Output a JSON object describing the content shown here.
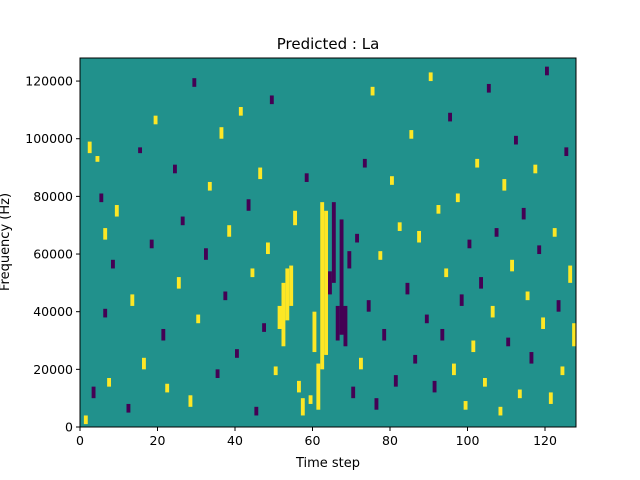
{
  "chart_data": {
    "type": "heatmap",
    "title": "Predicted : La",
    "xlabel": "Time step",
    "ylabel": "Frequency (Hz)",
    "xlim": [
      0,
      128
    ],
    "ylim": [
      0,
      128000
    ],
    "xticks": [
      0,
      20,
      40,
      60,
      80,
      100,
      120
    ],
    "yticks": [
      0,
      20000,
      40000,
      60000,
      80000,
      100000,
      120000
    ],
    "xtick_labels": [
      "0",
      "20",
      "40",
      "60",
      "80",
      "100",
      "120"
    ],
    "ytick_labels": [
      "0",
      "20000",
      "40000",
      "60000",
      "80000",
      "100000",
      "120000"
    ],
    "grid_cols": 128,
    "grid_rows": 128,
    "value_range": [
      -1,
      1
    ],
    "colors": {
      "background": "#21918c",
      "high": "#fde725",
      "low": "#440154"
    },
    "segments": [
      {
        "t": 1,
        "y": 1000,
        "len": 3000,
        "v": 1
      },
      {
        "t": 2,
        "y": 95000,
        "len": 4000,
        "v": 1
      },
      {
        "t": 3,
        "y": 10000,
        "len": 4000,
        "v": -1
      },
      {
        "t": 4,
        "y": 92000,
        "len": 2000,
        "v": 1
      },
      {
        "t": 5,
        "y": 78000,
        "len": 3000,
        "v": -1
      },
      {
        "t": 6,
        "y": 65000,
        "len": 4000,
        "v": 1
      },
      {
        "t": 6,
        "y": 38000,
        "len": 3000,
        "v": -1
      },
      {
        "t": 7,
        "y": 14000,
        "len": 3000,
        "v": 1
      },
      {
        "t": 8,
        "y": 55000,
        "len": 3000,
        "v": -1
      },
      {
        "t": 9,
        "y": 73000,
        "len": 4000,
        "v": 1
      },
      {
        "t": 12,
        "y": 5000,
        "len": 3000,
        "v": -1
      },
      {
        "t": 13,
        "y": 42000,
        "len": 4000,
        "v": 1
      },
      {
        "t": 15,
        "y": 95000,
        "len": 2000,
        "v": -1
      },
      {
        "t": 16,
        "y": 20000,
        "len": 4000,
        "v": 1
      },
      {
        "t": 18,
        "y": 62000,
        "len": 3000,
        "v": -1
      },
      {
        "t": 19,
        "y": 105000,
        "len": 3000,
        "v": 1
      },
      {
        "t": 21,
        "y": 30000,
        "len": 4000,
        "v": -1
      },
      {
        "t": 22,
        "y": 12000,
        "len": 3000,
        "v": 1
      },
      {
        "t": 24,
        "y": 88000,
        "len": 3000,
        "v": -1
      },
      {
        "t": 25,
        "y": 48000,
        "len": 4000,
        "v": 1
      },
      {
        "t": 26,
        "y": 70000,
        "len": 3000,
        "v": -1
      },
      {
        "t": 28,
        "y": 7000,
        "len": 4000,
        "v": 1
      },
      {
        "t": 29,
        "y": 118000,
        "len": 3000,
        "v": -1
      },
      {
        "t": 30,
        "y": 36000,
        "len": 3000,
        "v": 1
      },
      {
        "t": 32,
        "y": 58000,
        "len": 4000,
        "v": -1
      },
      {
        "t": 33,
        "y": 82000,
        "len": 3000,
        "v": 1
      },
      {
        "t": 35,
        "y": 17000,
        "len": 3000,
        "v": -1
      },
      {
        "t": 36,
        "y": 100000,
        "len": 4000,
        "v": 1
      },
      {
        "t": 37,
        "y": 44000,
        "len": 3000,
        "v": -1
      },
      {
        "t": 38,
        "y": 66000,
        "len": 4000,
        "v": 1
      },
      {
        "t": 40,
        "y": 24000,
        "len": 3000,
        "v": -1
      },
      {
        "t": 41,
        "y": 108000,
        "len": 3000,
        "v": 1
      },
      {
        "t": 43,
        "y": 75000,
        "len": 4000,
        "v": -1
      },
      {
        "t": 44,
        "y": 52000,
        "len": 3000,
        "v": 1
      },
      {
        "t": 45,
        "y": 4000,
        "len": 3000,
        "v": -1
      },
      {
        "t": 46,
        "y": 86000,
        "len": 4000,
        "v": 1
      },
      {
        "t": 47,
        "y": 33000,
        "len": 3000,
        "v": -1
      },
      {
        "t": 48,
        "y": 60000,
        "len": 4000,
        "v": 1
      },
      {
        "t": 49,
        "y": 112000,
        "len": 3000,
        "v": -1
      },
      {
        "t": 50,
        "y": 18000,
        "len": 3000,
        "v": 1
      },
      {
        "t": 51,
        "y": 34000,
        "len": 8000,
        "v": 1
      },
      {
        "t": 52,
        "y": 28000,
        "len": 22000,
        "v": 1
      },
      {
        "t": 53,
        "y": 37000,
        "len": 18000,
        "v": 1
      },
      {
        "t": 54,
        "y": 42000,
        "len": 14000,
        "v": 1
      },
      {
        "t": 55,
        "y": 70000,
        "len": 5000,
        "v": 1
      },
      {
        "t": 56,
        "y": 12000,
        "len": 4000,
        "v": 1
      },
      {
        "t": 57,
        "y": 4000,
        "len": 6000,
        "v": 1
      },
      {
        "t": 58,
        "y": 85000,
        "len": 3000,
        "v": -1
      },
      {
        "t": 59,
        "y": 8000,
        "len": 3000,
        "v": 1
      },
      {
        "t": 60,
        "y": 26000,
        "len": 14000,
        "v": 1
      },
      {
        "t": 61,
        "y": 6000,
        "len": 16000,
        "v": 1
      },
      {
        "t": 62,
        "y": 20000,
        "len": 58000,
        "v": 1
      },
      {
        "t": 63,
        "y": 25000,
        "len": 50000,
        "v": 1
      },
      {
        "t": 64,
        "y": 46000,
        "len": 8000,
        "v": -1
      },
      {
        "t": 65,
        "y": 50000,
        "len": 28000,
        "v": -1
      },
      {
        "t": 66,
        "y": 30000,
        "len": 12000,
        "v": -1
      },
      {
        "t": 67,
        "y": 32000,
        "len": 40000,
        "v": -1
      },
      {
        "t": 68,
        "y": 28000,
        "len": 14000,
        "v": -1
      },
      {
        "t": 69,
        "y": 55000,
        "len": 6000,
        "v": -1
      },
      {
        "t": 70,
        "y": 10000,
        "len": 4000,
        "v": -1
      },
      {
        "t": 71,
        "y": 64000,
        "len": 3000,
        "v": -1
      },
      {
        "t": 72,
        "y": 20000,
        "len": 4000,
        "v": 1
      },
      {
        "t": 73,
        "y": 90000,
        "len": 3000,
        "v": -1
      },
      {
        "t": 74,
        "y": 40000,
        "len": 4000,
        "v": -1
      },
      {
        "t": 75,
        "y": 115000,
        "len": 3000,
        "v": 1
      },
      {
        "t": 76,
        "y": 6000,
        "len": 4000,
        "v": -1
      },
      {
        "t": 77,
        "y": 58000,
        "len": 3000,
        "v": 1
      },
      {
        "t": 78,
        "y": 30000,
        "len": 4000,
        "v": -1
      },
      {
        "t": 80,
        "y": 84000,
        "len": 3000,
        "v": 1
      },
      {
        "t": 81,
        "y": 14000,
        "len": 4000,
        "v": -1
      },
      {
        "t": 82,
        "y": 68000,
        "len": 3000,
        "v": 1
      },
      {
        "t": 84,
        "y": 46000,
        "len": 4000,
        "v": -1
      },
      {
        "t": 85,
        "y": 100000,
        "len": 3000,
        "v": 1
      },
      {
        "t": 86,
        "y": 22000,
        "len": 3000,
        "v": -1
      },
      {
        "t": 87,
        "y": 64000,
        "len": 4000,
        "v": 1
      },
      {
        "t": 89,
        "y": 36000,
        "len": 3000,
        "v": -1
      },
      {
        "t": 90,
        "y": 120000,
        "len": 3000,
        "v": 1
      },
      {
        "t": 91,
        "y": 12000,
        "len": 4000,
        "v": -1
      },
      {
        "t": 92,
        "y": 74000,
        "len": 3000,
        "v": 1
      },
      {
        "t": 93,
        "y": 30000,
        "len": 4000,
        "v": -1
      },
      {
        "t": 94,
        "y": 52000,
        "len": 3000,
        "v": 1
      },
      {
        "t": 95,
        "y": 106000,
        "len": 3000,
        "v": -1
      },
      {
        "t": 96,
        "y": 18000,
        "len": 4000,
        "v": 1
      },
      {
        "t": 97,
        "y": 78000,
        "len": 3000,
        "v": 1
      },
      {
        "t": 98,
        "y": 42000,
        "len": 4000,
        "v": -1
      },
      {
        "t": 99,
        "y": 6000,
        "len": 3000,
        "v": 1
      },
      {
        "t": 100,
        "y": 62000,
        "len": 3000,
        "v": -1
      },
      {
        "t": 101,
        "y": 26000,
        "len": 4000,
        "v": 1
      },
      {
        "t": 102,
        "y": 90000,
        "len": 3000,
        "v": 1
      },
      {
        "t": 103,
        "y": 48000,
        "len": 4000,
        "v": -1
      },
      {
        "t": 104,
        "y": 14000,
        "len": 3000,
        "v": 1
      },
      {
        "t": 105,
        "y": 116000,
        "len": 3000,
        "v": -1
      },
      {
        "t": 106,
        "y": 38000,
        "len": 4000,
        "v": 1
      },
      {
        "t": 107,
        "y": 66000,
        "len": 3000,
        "v": -1
      },
      {
        "t": 108,
        "y": 4000,
        "len": 3000,
        "v": 1
      },
      {
        "t": 109,
        "y": 82000,
        "len": 4000,
        "v": 1
      },
      {
        "t": 110,
        "y": 28000,
        "len": 3000,
        "v": -1
      },
      {
        "t": 111,
        "y": 54000,
        "len": 4000,
        "v": 1
      },
      {
        "t": 112,
        "y": 98000,
        "len": 3000,
        "v": -1
      },
      {
        "t": 113,
        "y": 10000,
        "len": 3000,
        "v": 1
      },
      {
        "t": 114,
        "y": 72000,
        "len": 4000,
        "v": -1
      },
      {
        "t": 115,
        "y": 44000,
        "len": 3000,
        "v": 1
      },
      {
        "t": 116,
        "y": 22000,
        "len": 4000,
        "v": -1
      },
      {
        "t": 117,
        "y": 88000,
        "len": 3000,
        "v": 1
      },
      {
        "t": 118,
        "y": 60000,
        "len": 3000,
        "v": -1
      },
      {
        "t": 119,
        "y": 34000,
        "len": 4000,
        "v": 1
      },
      {
        "t": 120,
        "y": 122000,
        "len": 3000,
        "v": -1
      },
      {
        "t": 121,
        "y": 8000,
        "len": 4000,
        "v": 1
      },
      {
        "t": 122,
        "y": 66000,
        "len": 3000,
        "v": 1
      },
      {
        "t": 123,
        "y": 40000,
        "len": 4000,
        "v": -1
      },
      {
        "t": 124,
        "y": 18000,
        "len": 3000,
        "v": 1
      },
      {
        "t": 125,
        "y": 94000,
        "len": 3000,
        "v": -1
      },
      {
        "t": 126,
        "y": 50000,
        "len": 6000,
        "v": 1
      },
      {
        "t": 127,
        "y": 28000,
        "len": 8000,
        "v": 1
      }
    ]
  }
}
